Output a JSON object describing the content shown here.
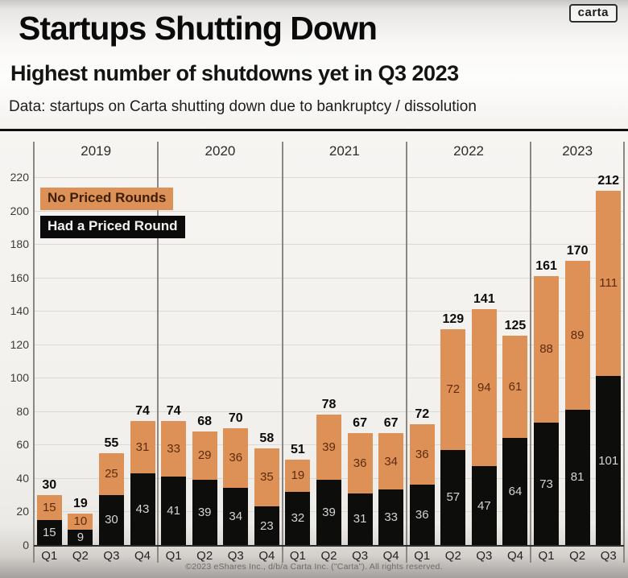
{
  "header": {
    "title": "Startups Shutting Down",
    "subtitle": "Highest number of shutdowns yet in Q3 2023",
    "note": "Data: startups on Carta shutting down due to bankruptcy / dissolution",
    "logo": "carta"
  },
  "legend": {
    "no_priced": "No Priced Rounds",
    "had_priced": "Had a Priced Round"
  },
  "footer": "©2023 eShares Inc., d/b/a Carta Inc. (\"Carta\"). All rights reserved.",
  "colors": {
    "orange": "#DD9157",
    "black": "#0D0D0C",
    "orange_label_text": "#5D2B0B",
    "black_label_text": "#D6D4D1",
    "total_label_text": "#0B0B0B"
  },
  "chart_data": {
    "type": "bar",
    "stacked": true,
    "title": "Startups Shutting Down",
    "ylim": [
      0,
      220
    ],
    "yticks": [
      0,
      20,
      40,
      60,
      80,
      100,
      120,
      140,
      160,
      180,
      200,
      220
    ],
    "grid": true,
    "legend_position": "top-left",
    "x_groups": [
      {
        "year": "2019",
        "quarters": [
          "Q1",
          "Q2",
          "Q3",
          "Q4"
        ]
      },
      {
        "year": "2020",
        "quarters": [
          "Q1",
          "Q2",
          "Q3",
          "Q4"
        ]
      },
      {
        "year": "2021",
        "quarters": [
          "Q1",
          "Q2",
          "Q3",
          "Q4"
        ]
      },
      {
        "year": "2022",
        "quarters": [
          "Q1",
          "Q2",
          "Q3",
          "Q4"
        ]
      },
      {
        "year": "2023",
        "quarters": [
          "Q1",
          "Q2",
          "Q3"
        ]
      }
    ],
    "series": [
      {
        "name": "Had a Priced Round",
        "color": "#0D0D0C",
        "values": [
          [
            15,
            9,
            30,
            43
          ],
          [
            41,
            39,
            34,
            23
          ],
          [
            32,
            39,
            31,
            33
          ],
          [
            36,
            57,
            47,
            64
          ],
          [
            73,
            81,
            101
          ]
        ]
      },
      {
        "name": "No Priced Rounds",
        "color": "#DD9157",
        "values": [
          [
            15,
            10,
            25,
            31
          ],
          [
            33,
            29,
            36,
            35
          ],
          [
            19,
            39,
            36,
            34
          ],
          [
            36,
            72,
            94,
            61
          ],
          [
            88,
            89,
            111
          ]
        ]
      }
    ],
    "totals": [
      [
        30,
        19,
        55,
        74
      ],
      [
        74,
        68,
        70,
        58
      ],
      [
        51,
        78,
        67,
        67
      ],
      [
        72,
        129,
        141,
        125
      ],
      [
        161,
        170,
        212
      ]
    ]
  }
}
